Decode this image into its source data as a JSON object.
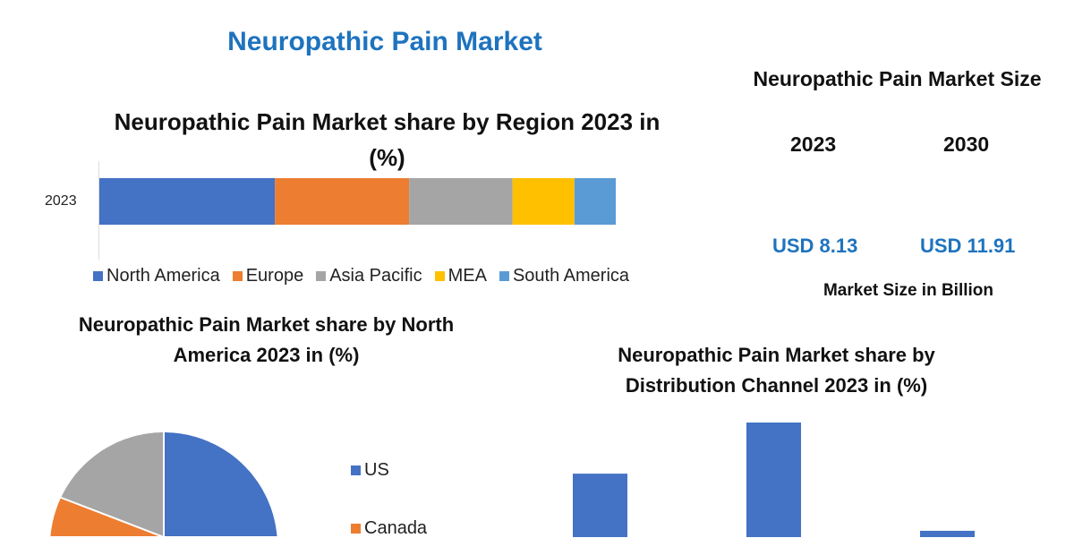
{
  "title": "Neuropathic Pain Market",
  "market_size": {
    "title": "Neuropathic Pain Market Size",
    "years": [
      "2023",
      "2030"
    ],
    "values": [
      "USD 8.13",
      "USD 11.91"
    ],
    "unit": "Market Size in Billion"
  },
  "chart_data": [
    {
      "type": "bar",
      "orientation": "horizontal",
      "stacked": true,
      "title": "Neuropathic Pain Market share by Region 2023 in (%)",
      "categories": [
        "2023"
      ],
      "series": [
        {
          "name": "North America",
          "values": [
            34
          ],
          "color": "#4472c4"
        },
        {
          "name": "Europe",
          "values": [
            26
          ],
          "color": "#ed7d31"
        },
        {
          "name": "Asia Pacific",
          "values": [
            20
          ],
          "color": "#a5a5a5"
        },
        {
          "name": "MEA",
          "values": [
            12
          ],
          "color": "#ffc000"
        },
        {
          "name": "South America",
          "values": [
            8
          ],
          "color": "#5b9bd5"
        }
      ],
      "legend": "bottom",
      "grid": false
    },
    {
      "type": "pie",
      "title": "Neuropathic Pain Market share by North America 2023 in (%)",
      "categories": [
        "US",
        "Canada",
        ""
      ],
      "values": [
        62,
        20,
        18
      ],
      "colors": [
        "#4472c4",
        "#ed7d31",
        "#a5a5a5"
      ],
      "legend": "right"
    },
    {
      "type": "bar",
      "title": "Neuropathic Pain Market share by Distribution Channel 2023 in (%)",
      "values": [
        33,
        50,
        14
      ],
      "color": "#4472c4",
      "grid": false
    }
  ]
}
